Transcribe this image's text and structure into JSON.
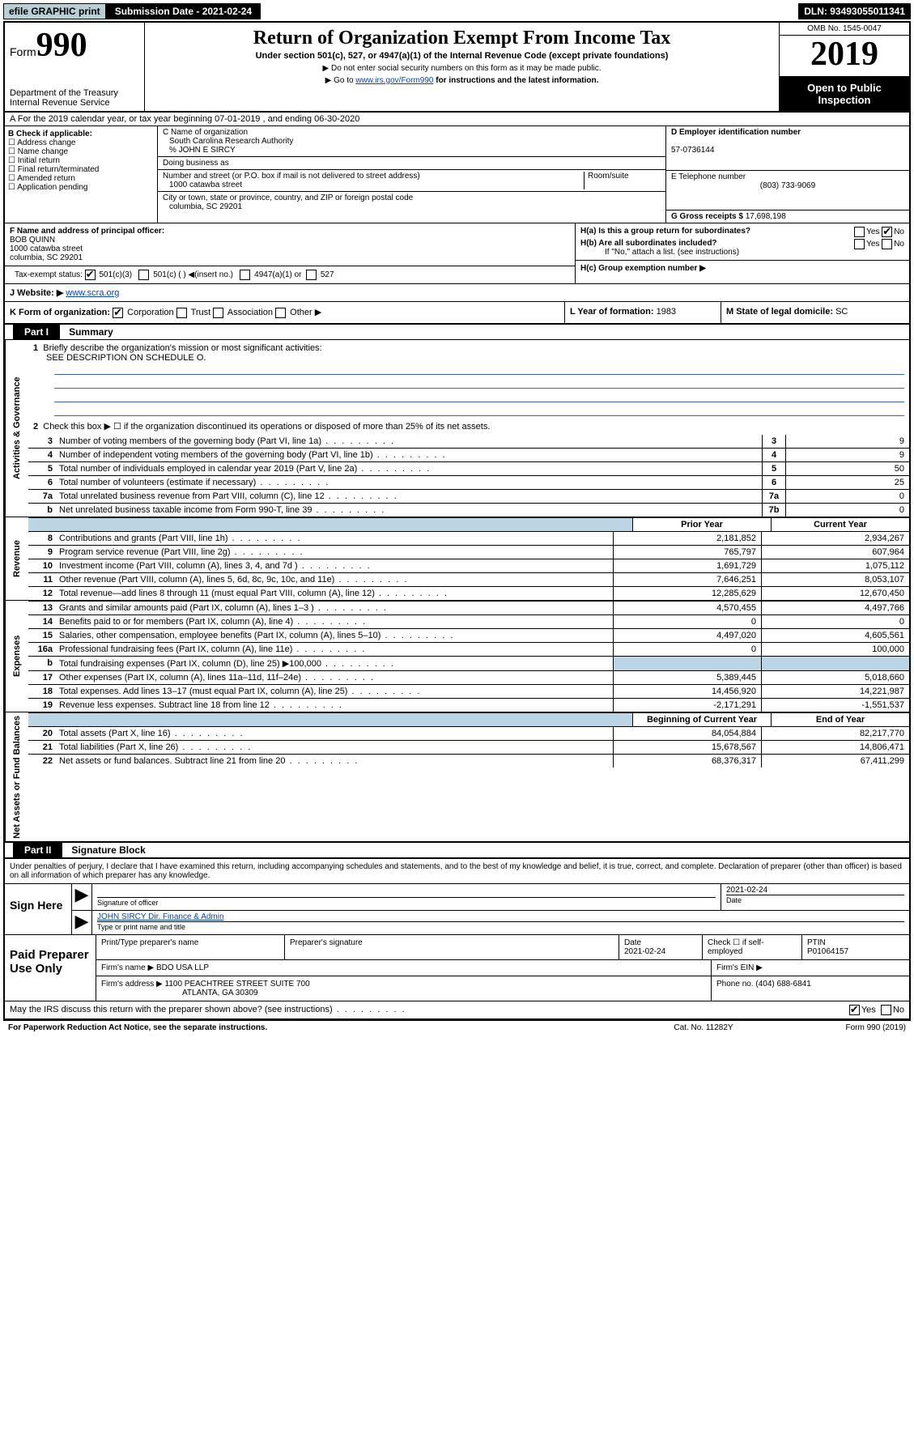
{
  "topbar": {
    "efile": "efile GRAPHIC print",
    "submission_label": "Submission Date - 2021-02-24",
    "dln": "DLN: 93493055011341"
  },
  "header": {
    "form_label": "Form",
    "form_number": "990",
    "dept": "Department of the Treasury",
    "irs": "Internal Revenue Service",
    "title": "Return of Organization Exempt From Income Tax",
    "subtitle": "Under section 501(c), 527, or 4947(a)(1) of the Internal Revenue Code (except private foundations)",
    "bullet1": "▶ Do not enter social security numbers on this form as it may be made public.",
    "bullet2_pre": "▶ Go to ",
    "bullet2_link": "www.irs.gov/Form990",
    "bullet2_post": " for instructions and the latest information.",
    "omb": "OMB No. 1545-0047",
    "year": "2019",
    "open_public": "Open to Public Inspection"
  },
  "line_a": "A   For the 2019 calendar year, or tax year beginning 07-01-2019     , and ending 06-30-2020",
  "box_b": {
    "label": "B Check if applicable:",
    "opts": [
      "Address change",
      "Name change",
      "Initial return",
      "Final return/terminated",
      "Amended return",
      "Application pending"
    ]
  },
  "box_c": {
    "name_label": "C Name of organization",
    "name": "South Carolina Research Authority",
    "care_of": "% JOHN E SIRCY",
    "dba_label": "Doing business as",
    "addr_label": "Number and street (or P.O. box if mail is not delivered to street address)",
    "room_label": "Room/suite",
    "addr": "1000 catawba street",
    "city_label": "City or town, state or province, country, and ZIP or foreign postal code",
    "city": "columbia, SC  29201"
  },
  "box_d": {
    "label": "D Employer identification number",
    "value": "57-0736144"
  },
  "box_e": {
    "label": "E Telephone number",
    "value": "(803) 733-9069"
  },
  "box_g": {
    "label": "G Gross receipts $",
    "value": "17,698,198"
  },
  "box_f": {
    "label": "F  Name and address of principal officer:",
    "name": "BOB QUINN",
    "addr1": "1000 catawba street",
    "addr2": "columbia, SC  29201"
  },
  "box_h": {
    "ha_label": "H(a)  Is this a group return for subordinates?",
    "hb_label": "H(b)  Are all subordinates included?",
    "hb_note": "If \"No,\" attach a list. (see instructions)",
    "hc_label": "H(c)  Group exemption number ▶",
    "yes": "Yes",
    "no": "No"
  },
  "box_i": {
    "label": "Tax-exempt status:",
    "opts": [
      "501(c)(3)",
      "501(c) (  ) ◀(insert no.)",
      "4947(a)(1) or",
      "527"
    ]
  },
  "box_j": {
    "label": "J  Website: ▶",
    "value": "www.scra.org"
  },
  "box_k": {
    "label": "K Form of organization:",
    "opts": [
      "Corporation",
      "Trust",
      "Association",
      "Other ▶"
    ]
  },
  "box_l": {
    "label": "L Year of formation:",
    "value": "1983"
  },
  "box_m": {
    "label": "M State of legal domicile:",
    "value": "SC"
  },
  "part1": {
    "hd": "Part I",
    "title": "Summary"
  },
  "p1_sections": {
    "gov": "Activities & Governance",
    "rev": "Revenue",
    "exp": "Expenses",
    "net": "Net Assets or Fund Balances"
  },
  "p1_q1": {
    "num": "1",
    "label": "Briefly describe the organization's mission or most significant activities:",
    "text": "SEE DESCRIPTION ON SCHEDULE O."
  },
  "p1_q2": {
    "num": "2",
    "label": "Check this box ▶ ☐  if the organization discontinued its operations or disposed of more than 25% of its net assets."
  },
  "p1_lines_single": [
    {
      "num": "3",
      "label": "Number of voting members of the governing body (Part VI, line 1a)",
      "box": "3",
      "val": "9"
    },
    {
      "num": "4",
      "label": "Number of independent voting members of the governing body (Part VI, line 1b)",
      "box": "4",
      "val": "9"
    },
    {
      "num": "5",
      "label": "Total number of individuals employed in calendar year 2019 (Part V, line 2a)",
      "box": "5",
      "val": "50"
    },
    {
      "num": "6",
      "label": "Total number of volunteers (estimate if necessary)",
      "box": "6",
      "val": "25"
    },
    {
      "num": "7a",
      "label": "Total unrelated business revenue from Part VIII, column (C), line 12",
      "box": "7a",
      "val": "0"
    },
    {
      "num": "b",
      "label": "Net unrelated business taxable income from Form 990-T, line 39",
      "box": "7b",
      "val": "0"
    }
  ],
  "colheads": {
    "prior": "Prior Year",
    "current": "Current Year",
    "begin": "Beginning of Current Year",
    "end": "End of Year"
  },
  "rev_lines": [
    {
      "num": "8",
      "label": "Contributions and grants (Part VIII, line 1h)",
      "p": "2,181,852",
      "c": "2,934,267"
    },
    {
      "num": "9",
      "label": "Program service revenue (Part VIII, line 2g)",
      "p": "765,797",
      "c": "607,964"
    },
    {
      "num": "10",
      "label": "Investment income (Part VIII, column (A), lines 3, 4, and 7d )",
      "p": "1,691,729",
      "c": "1,075,112"
    },
    {
      "num": "11",
      "label": "Other revenue (Part VIII, column (A), lines 5, 6d, 8c, 9c, 10c, and 11e)",
      "p": "7,646,251",
      "c": "8,053,107"
    },
    {
      "num": "12",
      "label": "Total revenue—add lines 8 through 11 (must equal Part VIII, column (A), line 12)",
      "p": "12,285,629",
      "c": "12,670,450"
    }
  ],
  "exp_lines": [
    {
      "num": "13",
      "label": "Grants and similar amounts paid (Part IX, column (A), lines 1–3 )",
      "p": "4,570,455",
      "c": "4,497,766"
    },
    {
      "num": "14",
      "label": "Benefits paid to or for members (Part IX, column (A), line 4)",
      "p": "0",
      "c": "0"
    },
    {
      "num": "15",
      "label": "Salaries, other compensation, employee benefits (Part IX, column (A), lines 5–10)",
      "p": "4,497,020",
      "c": "4,605,561"
    },
    {
      "num": "16a",
      "label": "Professional fundraising fees (Part IX, column (A), line 11e)",
      "p": "0",
      "c": "100,000"
    },
    {
      "num": "b",
      "label": "Total fundraising expenses (Part IX, column (D), line 25) ▶100,000",
      "p": "",
      "c": "",
      "grey": true
    },
    {
      "num": "17",
      "label": "Other expenses (Part IX, column (A), lines 11a–11d, 11f–24e)",
      "p": "5,389,445",
      "c": "5,018,660"
    },
    {
      "num": "18",
      "label": "Total expenses. Add lines 13–17 (must equal Part IX, column (A), line 25)",
      "p": "14,456,920",
      "c": "14,221,987"
    },
    {
      "num": "19",
      "label": "Revenue less expenses. Subtract line 18 from line 12",
      "p": "-2,171,291",
      "c": "-1,551,537"
    }
  ],
  "net_lines": [
    {
      "num": "20",
      "label": "Total assets (Part X, line 16)",
      "p": "84,054,884",
      "c": "82,217,770"
    },
    {
      "num": "21",
      "label": "Total liabilities (Part X, line 26)",
      "p": "15,678,567",
      "c": "14,806,471"
    },
    {
      "num": "22",
      "label": "Net assets or fund balances. Subtract line 21 from line 20",
      "p": "68,376,317",
      "c": "67,411,299"
    }
  ],
  "part2": {
    "hd": "Part II",
    "title": "Signature Block"
  },
  "sig": {
    "perjury": "Under penalties of perjury, I declare that I have examined this return, including accompanying schedules and statements, and to the best of my knowledge and belief, it is true, correct, and complete. Declaration of preparer (other than officer) is based on all information of which preparer has any knowledge.",
    "sign_here": "Sign Here",
    "sig_officer": "Signature of officer",
    "date": "2021-02-24",
    "date_label": "Date",
    "officer_name": "JOHN SIRCY Dir. Finance & Admin",
    "type_name": "Type or print name and title"
  },
  "paid": {
    "title": "Paid Preparer Use Only",
    "h1": "Print/Type preparer's name",
    "h2": "Preparer's signature",
    "h3_label": "Date",
    "h3_val": "2021-02-24",
    "h4": "Check ☐ if self-employed",
    "h5_label": "PTIN",
    "h5_val": "P01064157",
    "firm_name_label": "Firm's name    ▶",
    "firm_name": "BDO USA LLP",
    "firm_ein_label": "Firm's EIN ▶",
    "firm_addr_label": "Firm's address ▶",
    "firm_addr": "1100 PEACHTREE STREET SUITE 700",
    "firm_city": "ATLANTA, GA  30309",
    "phone_label": "Phone no.",
    "phone": "(404) 688-6841"
  },
  "discuss": {
    "q": "May the IRS discuss this return with the preparer shown above? (see instructions)",
    "yes": "Yes",
    "no": "No"
  },
  "footer": {
    "left": "For Paperwork Reduction Act Notice, see the separate instructions.",
    "mid": "Cat. No. 11282Y",
    "right": "Form 990 (2019)"
  }
}
